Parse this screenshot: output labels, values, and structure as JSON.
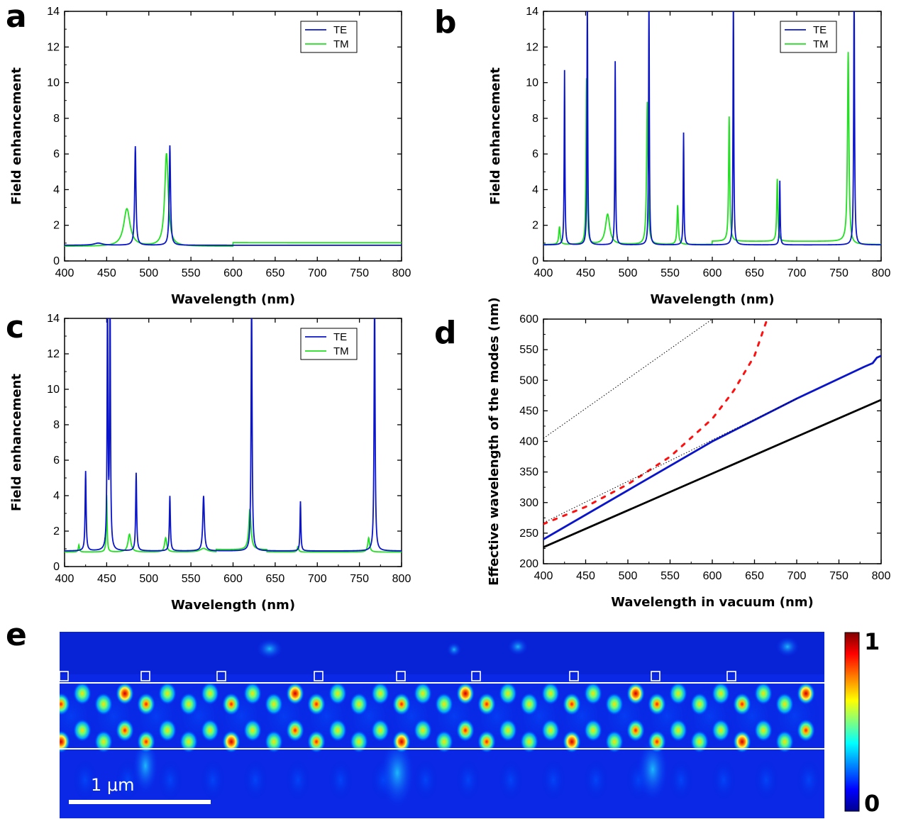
{
  "panel_labels": [
    "a",
    "b",
    "c",
    "d",
    "e"
  ],
  "colors": {
    "te": "#0a14c8",
    "tm": "#22e022",
    "black_line": "#000000",
    "red_dotted": "#ff1010"
  },
  "chart_data": [
    {
      "panel": "a",
      "type": "line",
      "xlabel": "Wavelength (nm)",
      "ylabel": "Field enhancement",
      "xlim": [
        400,
        800
      ],
      "ylim": [
        0,
        14
      ],
      "xticks": [
        400,
        450,
        500,
        550,
        600,
        650,
        700,
        750,
        800
      ],
      "yticks": [
        0,
        2,
        4,
        6,
        8,
        10,
        12,
        14
      ],
      "legend": {
        "position": "top-right"
      },
      "series": [
        {
          "name": "TE",
          "color": "#0a14c8",
          "baseline": 0.88,
          "peaks": [
            [
              440,
              0.12,
              6
            ],
            [
              484,
              5.55,
              0.9
            ],
            [
              525,
              5.6,
              0.9
            ]
          ]
        },
        {
          "name": "TM",
          "color": "#22e022",
          "baseline": 0.82,
          "peaks": [
            [
              474,
              2.1,
              4.5
            ],
            [
              521,
              5.2,
              2.5
            ]
          ],
          "shelf": [
            600,
            800,
            1.02
          ]
        }
      ]
    },
    {
      "panel": "b",
      "type": "line",
      "xlabel": "Wavelength (nm)",
      "ylabel": "Field enhancement",
      "xlim": [
        400,
        800
      ],
      "ylim": [
        0,
        14
      ],
      "xticks": [
        400,
        450,
        500,
        550,
        600,
        650,
        700,
        750,
        800
      ],
      "yticks": [
        0,
        2,
        4,
        6,
        8,
        10,
        12,
        14
      ],
      "legend": {
        "position": "top-right"
      },
      "series": [
        {
          "name": "TE",
          "color": "#0a14c8",
          "baseline": 0.9,
          "peaks": [
            [
              425,
              9.8,
              0.5
            ],
            [
              452,
              14.5,
              0.5
            ],
            [
              485,
              10.3,
              0.5
            ],
            [
              525,
              14.5,
              0.5
            ],
            [
              566,
              6.3,
              0.5
            ],
            [
              625,
              14.5,
              0.5
            ],
            [
              680,
              3.6,
              0.5
            ],
            [
              768,
              14.5,
              0.6
            ]
          ]
        },
        {
          "name": "TM",
          "color": "#22e022",
          "baseline": 0.92,
          "peaks": [
            [
              419,
              1.0,
              1.0
            ],
            [
              451,
              9.3,
              0.7
            ],
            [
              476,
              1.7,
              3.0
            ],
            [
              523,
              8.0,
              1.0
            ],
            [
              559,
              2.2,
              0.9
            ],
            [
              620,
              7.0,
              0.8
            ],
            [
              677,
              3.5,
              0.8
            ],
            [
              761,
              10.8,
              1.0
            ]
          ],
          "shelf": [
            600,
            760,
            1.1
          ]
        }
      ]
    },
    {
      "panel": "c",
      "type": "line",
      "xlabel": "Wavelength (nm)",
      "ylabel": "Field enhancement",
      "xlim": [
        400,
        800
      ],
      "ylim": [
        0,
        14
      ],
      "xticks": [
        400,
        450,
        500,
        550,
        600,
        650,
        700,
        750,
        800
      ],
      "yticks": [
        0,
        2,
        4,
        6,
        8,
        10,
        12,
        14
      ],
      "legend": {
        "position": "top-right"
      },
      "series": [
        {
          "name": "TE",
          "color": "#0a14c8",
          "baseline": 0.88,
          "peaks": [
            [
              425,
              4.5,
              0.7
            ],
            [
              451,
              14.5,
              0.6
            ],
            [
              454,
              14.5,
              0.6
            ],
            [
              485,
              4.4,
              0.7
            ],
            [
              525,
              3.1,
              0.7
            ],
            [
              565,
              3.1,
              1.1
            ],
            [
              622,
              14.5,
              0.7
            ],
            [
              680,
              2.8,
              0.6
            ],
            [
              768,
              14.5,
              0.7
            ]
          ]
        },
        {
          "name": "TM",
          "color": "#22e022",
          "baseline": 0.82,
          "peaks": [
            [
              417,
              0.4,
              0.8
            ],
            [
              450,
              3.2,
              0.6
            ],
            [
              477,
              1.0,
              2.0
            ],
            [
              520,
              0.8,
              1.5
            ],
            [
              565,
              0.2,
              5.0
            ],
            [
              620,
              2.3,
              1.6
            ],
            [
              677,
              0.3,
              1.0
            ],
            [
              761,
              0.8,
              1.3
            ]
          ],
          "shelf": [
            580,
            640,
            0.95
          ]
        }
      ]
    },
    {
      "panel": "d",
      "type": "line",
      "xlabel": "Wavelength in vacuum (nm)",
      "ylabel": "Effective wavelength of the modes (nm)",
      "xlim": [
        400,
        800
      ],
      "ylim": [
        200,
        600
      ],
      "xticks": [
        400,
        450,
        500,
        550,
        600,
        650,
        700,
        750,
        800
      ],
      "yticks": [
        200,
        250,
        300,
        350,
        400,
        450,
        500,
        550,
        600
      ],
      "series": [
        {
          "style": "solid",
          "color": "#0a14c8",
          "x": [
            400,
            500,
            600,
            700,
            780,
            790,
            795,
            800
          ],
          "y": [
            240,
            320,
            400,
            470,
            522,
            528,
            537,
            540
          ]
        },
        {
          "style": "solid",
          "color": "#000000",
          "x": [
            400,
            800
          ],
          "y": [
            227,
            468
          ]
        },
        {
          "style": "dashed",
          "color": "#ff1010",
          "x": [
            400,
            450,
            500,
            550,
            600,
            625,
            650,
            665
          ],
          "y": [
            265,
            293,
            330,
            375,
            437,
            482,
            540,
            600
          ]
        },
        {
          "style": "dotted",
          "color": "#000000",
          "x": [
            400,
            600
          ],
          "y": [
            405,
            600
          ]
        },
        {
          "style": "dotted",
          "color": "#000000",
          "x": [
            400,
            700
          ],
          "y": [
            267,
            470
          ]
        }
      ]
    },
    {
      "panel": "e",
      "type": "heatmap",
      "colorbar": {
        "max_label": "1",
        "min_label": "0"
      },
      "scale_bar_label": "1 μm"
    }
  ]
}
